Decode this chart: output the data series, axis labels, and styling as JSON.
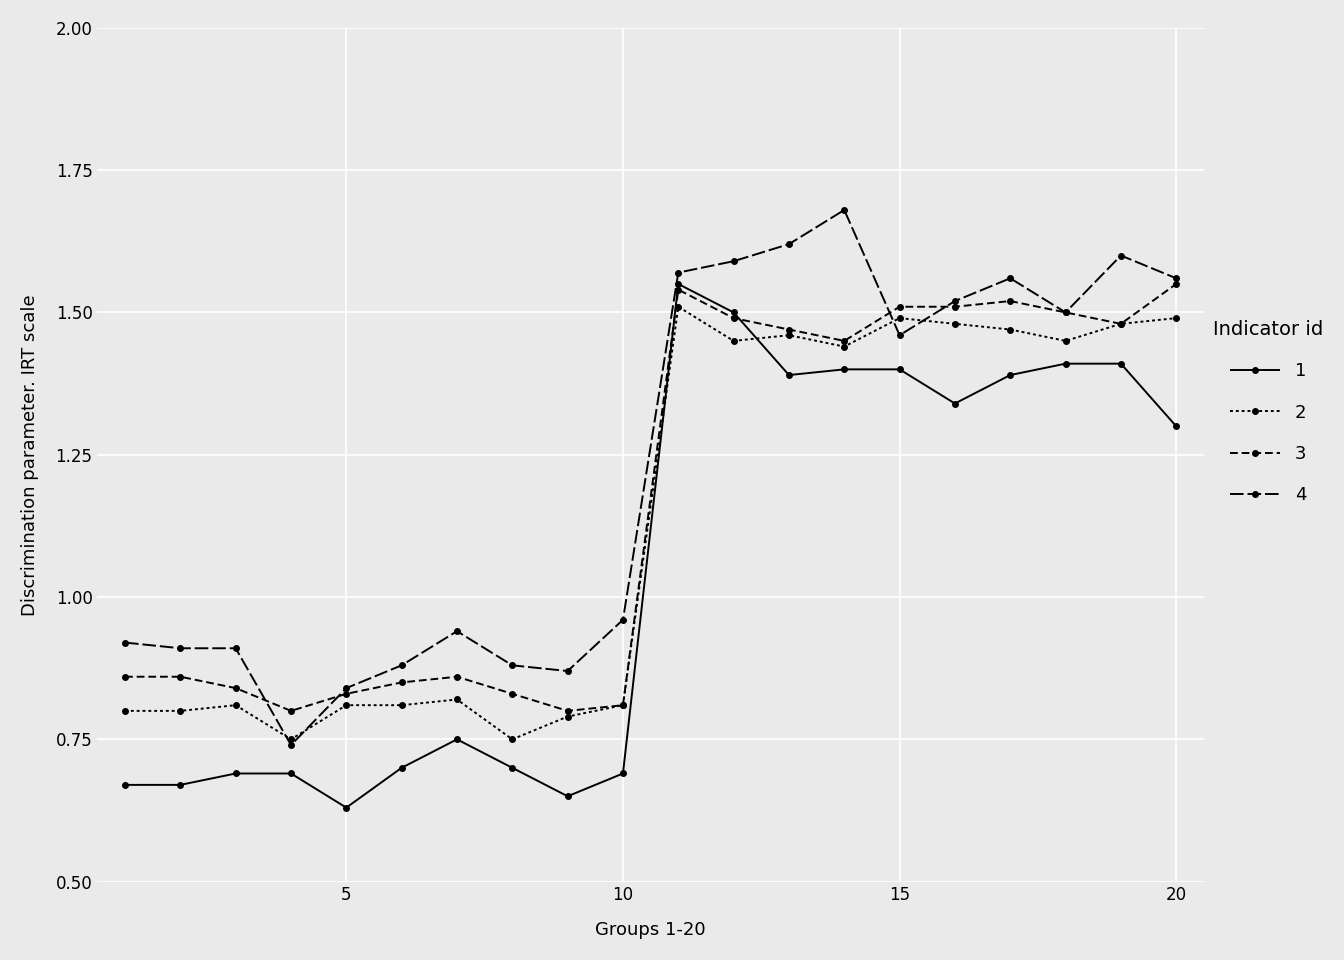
{
  "groups": [
    1,
    2,
    3,
    4,
    5,
    6,
    7,
    8,
    9,
    10,
    11,
    12,
    13,
    14,
    15,
    16,
    17,
    18,
    19,
    20
  ],
  "series": {
    "1": [
      0.67,
      0.67,
      0.69,
      0.69,
      0.63,
      0.7,
      0.75,
      0.7,
      0.65,
      0.69,
      1.55,
      1.5,
      1.39,
      1.4,
      1.4,
      1.34,
      1.39,
      1.41,
      1.41,
      1.3
    ],
    "2": [
      0.8,
      0.8,
      0.81,
      0.75,
      0.81,
      0.81,
      0.82,
      0.75,
      0.79,
      0.81,
      1.51,
      1.45,
      1.46,
      1.44,
      1.49,
      1.48,
      1.47,
      1.45,
      1.48,
      1.49
    ],
    "3": [
      0.86,
      0.86,
      0.84,
      0.8,
      0.83,
      0.85,
      0.86,
      0.83,
      0.8,
      0.81,
      1.54,
      1.49,
      1.47,
      1.45,
      1.51,
      1.51,
      1.52,
      1.5,
      1.48,
      1.55
    ],
    "4": [
      0.92,
      0.91,
      0.91,
      0.74,
      0.84,
      0.88,
      0.94,
      0.88,
      0.87,
      0.96,
      1.57,
      1.59,
      1.62,
      1.68,
      1.46,
      1.52,
      1.56,
      1.5,
      1.6,
      1.56
    ]
  },
  "linestyle_keys": [
    "solid",
    "dotted",
    "dashed_short",
    "dashed_long"
  ],
  "color": "#000000",
  "marker": "o",
  "markersize": 4,
  "linewidth": 1.4,
  "xlabel": "Groups 1-20",
  "ylabel": "Discrimination parameter. IRT scale",
  "ylim": [
    0.5,
    2.0
  ],
  "yticks": [
    0.5,
    0.75,
    1.0,
    1.25,
    1.5,
    1.75,
    2.0
  ],
  "xticks": [
    5,
    10,
    15,
    20
  ],
  "legend_title": "Indicator id",
  "legend_labels": [
    "1",
    "2",
    "3",
    "4"
  ],
  "background_color": "#eaeaea",
  "plot_bg_color": "#eaeaea",
  "grid_color": "#ffffff",
  "label_fontsize": 13,
  "tick_fontsize": 12,
  "legend_fontsize": 13
}
